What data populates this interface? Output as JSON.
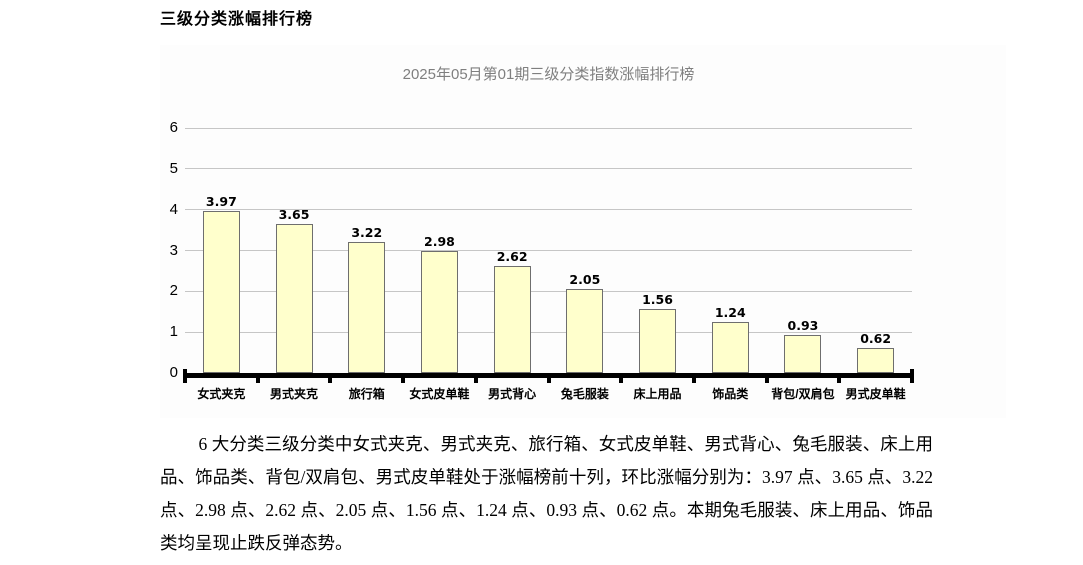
{
  "page": {
    "heading": "三级分类涨幅排行榜"
  },
  "chart_data": {
    "type": "bar",
    "title": "2025年05月第01期三级分类指数涨幅排行榜",
    "categories": [
      "女式夹克",
      "男式夹克",
      "旅行箱",
      "女式皮单鞋",
      "男式背心",
      "兔毛服装",
      "床上用品",
      "饰品类",
      "背包/双肩包",
      "男式皮单鞋"
    ],
    "values": [
      3.97,
      3.65,
      3.22,
      2.98,
      2.62,
      2.05,
      1.56,
      1.24,
      0.93,
      0.62
    ],
    "value_labels": [
      "3.97",
      "3.65",
      "3.22",
      "2.98",
      "2.62",
      "2.05",
      "1.56",
      "1.24",
      "0.93",
      "0.62"
    ],
    "xlabel": "",
    "ylabel": "",
    "ylim": [
      0,
      6
    ],
    "yticks": [
      0,
      1,
      2,
      3,
      4,
      5,
      6
    ],
    "grid": true,
    "legend": "none",
    "bar_color": "#ffffcc",
    "bar_border_color": "#6e6e6e",
    "gridline_color": "#c6c6c6",
    "title_color": "#7f7f7f"
  },
  "paragraph": {
    "text": "6 大分类三级分类中女式夹克、男式夹克、旅行箱、女式皮单鞋、男式背心、兔毛服装、床上用品、饰品类、背包/双肩包、男式皮单鞋处于涨幅榜前十列，环比涨幅分别为：3.97 点、3.65 点、3.22 点、2.98 点、2.62 点、2.05 点、1.56 点、1.24 点、0.93 点、0.62 点。本期兔毛服装、床上用品、饰品类均呈现止跌反弹态势。"
  }
}
